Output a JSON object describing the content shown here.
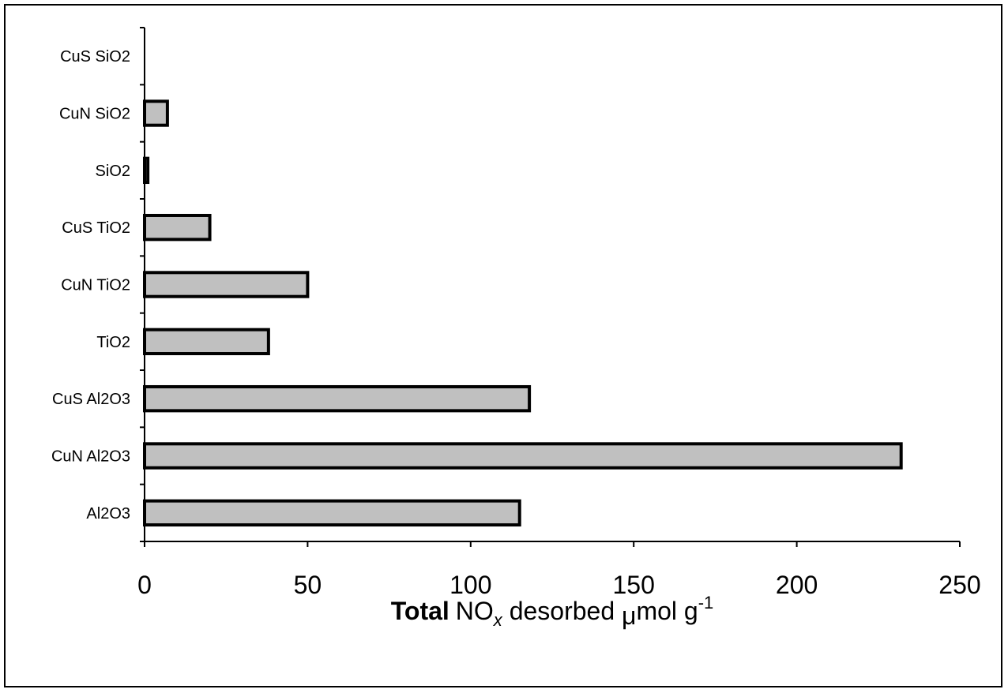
{
  "chart_data": {
    "type": "bar",
    "orientation": "horizontal",
    "categories": [
      "Al2O3",
      "CuN Al2O3",
      "CuS Al2O3",
      "TiO2",
      "CuN TiO2",
      "CuS TiO2",
      "SiO2",
      "CuN SiO2",
      "CuS SiO2"
    ],
    "values": [
      115,
      232,
      118,
      38,
      50,
      20,
      1,
      7,
      0
    ],
    "xlim": [
      0,
      250
    ],
    "xticks": [
      0,
      50,
      100,
      150,
      200,
      250
    ],
    "xlabel": {
      "bold": "Total",
      "species": "NO",
      "species_sub": "x",
      "rest": " desorbed ",
      "mu": "μ",
      "unit": "mol g",
      "exp": "-1"
    },
    "bar_fill": "#c0c0c0",
    "bar_stroke": "#000000",
    "grid": false,
    "legend": "none"
  }
}
